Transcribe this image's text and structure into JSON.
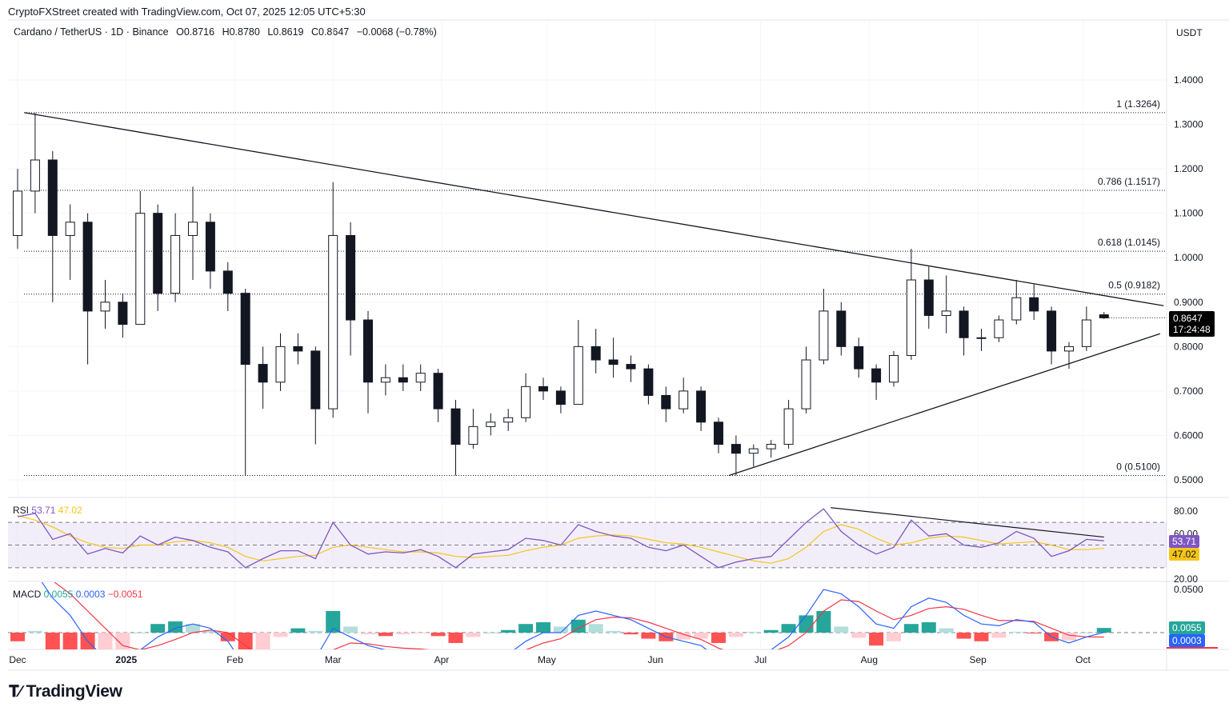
{
  "header": {
    "credit": "CryptoFXStreet created with TradingView.com, Oct 07, 2025 12:05 UTC+5:30",
    "symbol": "Cardano / TetherUS · 1D · Binance",
    "open": "O0.8716",
    "high": "H0.8780",
    "low": "L0.8619",
    "close": "C0.8647",
    "change": "−0.0068 (−0.78%)",
    "currency": "USDT"
  },
  "price_label": {
    "value": "0.8647",
    "countdown": "17:24:48"
  },
  "brand": "TradingView",
  "colors": {
    "up": "#089981",
    "down": "#f23645",
    "rsi": "#7e57c2",
    "rsi_ma": "#f5c518",
    "macd": "#2962ff",
    "signal": "#f23645",
    "hist_up": "#26a69a",
    "hist_down": "#ff5252"
  },
  "chart_data": {
    "type": "candlestick",
    "timeframe": "1D",
    "x_ticks": [
      {
        "label": "Dec",
        "date": "2024-12-01"
      },
      {
        "label": "2025",
        "date": "2025-01-01"
      },
      {
        "label": "Feb",
        "date": "2025-02-01"
      },
      {
        "label": "Mar",
        "date": "2025-03-01"
      },
      {
        "label": "Apr",
        "date": "2025-04-01"
      },
      {
        "label": "May",
        "date": "2025-05-01"
      },
      {
        "label": "Jun",
        "date": "2025-06-01"
      },
      {
        "label": "Jul",
        "date": "2025-07-01"
      },
      {
        "label": "Aug",
        "date": "2025-08-01"
      },
      {
        "label": "Sep",
        "date": "2025-09-01"
      },
      {
        "label": "Oct",
        "date": "2025-10-01"
      }
    ],
    "y_ticks": [
      "0.5000",
      "0.6000",
      "0.7000",
      "0.8000",
      "0.9000",
      "1.0000",
      "1.1000",
      "1.2000",
      "1.3000",
      "1.4000"
    ],
    "ylim": [
      0.5,
      1.4
    ],
    "candles": [
      [
        "2024-12-01",
        1.05,
        1.2,
        1.02,
        1.15
      ],
      [
        "2024-12-06",
        1.15,
        1.3264,
        1.1,
        1.22
      ],
      [
        "2024-12-11",
        1.22,
        1.24,
        0.9,
        1.05
      ],
      [
        "2024-12-16",
        1.05,
        1.12,
        0.95,
        1.08
      ],
      [
        "2024-12-21",
        1.08,
        1.1,
        0.76,
        0.88
      ],
      [
        "2024-12-26",
        0.88,
        0.95,
        0.84,
        0.9
      ],
      [
        "2024-12-31",
        0.9,
        0.92,
        0.82,
        0.85
      ],
      [
        "2025-01-05",
        0.85,
        1.15,
        0.85,
        1.1
      ],
      [
        "2025-01-10",
        1.1,
        1.12,
        0.88,
        0.92
      ],
      [
        "2025-01-15",
        0.92,
        1.1,
        0.9,
        1.05
      ],
      [
        "2025-01-20",
        1.05,
        1.16,
        0.95,
        1.08
      ],
      [
        "2025-01-25",
        1.08,
        1.1,
        0.93,
        0.97
      ],
      [
        "2025-01-30",
        0.97,
        0.99,
        0.88,
        0.92
      ],
      [
        "2025-02-04",
        0.92,
        0.93,
        0.51,
        0.76
      ],
      [
        "2025-02-09",
        0.76,
        0.8,
        0.66,
        0.72
      ],
      [
        "2025-02-14",
        0.72,
        0.83,
        0.7,
        0.8
      ],
      [
        "2025-02-19",
        0.8,
        0.83,
        0.76,
        0.79
      ],
      [
        "2025-02-24",
        0.79,
        0.8,
        0.58,
        0.66
      ],
      [
        "2025-03-01",
        0.66,
        1.17,
        0.64,
        1.05
      ],
      [
        "2025-03-06",
        1.05,
        1.08,
        0.78,
        0.86
      ],
      [
        "2025-03-11",
        0.86,
        0.88,
        0.65,
        0.72
      ],
      [
        "2025-03-16",
        0.72,
        0.76,
        0.69,
        0.73
      ],
      [
        "2025-03-21",
        0.73,
        0.76,
        0.7,
        0.72
      ],
      [
        "2025-03-26",
        0.72,
        0.76,
        0.7,
        0.74
      ],
      [
        "2025-03-31",
        0.74,
        0.75,
        0.63,
        0.66
      ],
      [
        "2025-04-05",
        0.66,
        0.68,
        0.51,
        0.58
      ],
      [
        "2025-04-10",
        0.58,
        0.66,
        0.57,
        0.62
      ],
      [
        "2025-04-15",
        0.62,
        0.65,
        0.6,
        0.63
      ],
      [
        "2025-04-20",
        0.63,
        0.66,
        0.61,
        0.64
      ],
      [
        "2025-04-25",
        0.64,
        0.74,
        0.63,
        0.71
      ],
      [
        "2025-04-30",
        0.71,
        0.73,
        0.68,
        0.7
      ],
      [
        "2025-05-05",
        0.7,
        0.71,
        0.65,
        0.67
      ],
      [
        "2025-05-10",
        0.67,
        0.86,
        0.67,
        0.8
      ],
      [
        "2025-05-15",
        0.8,
        0.84,
        0.74,
        0.77
      ],
      [
        "2025-05-20",
        0.77,
        0.82,
        0.73,
        0.76
      ],
      [
        "2025-05-25",
        0.76,
        0.78,
        0.72,
        0.75
      ],
      [
        "2025-05-30",
        0.75,
        0.76,
        0.67,
        0.69
      ],
      [
        "2025-06-04",
        0.69,
        0.71,
        0.63,
        0.66
      ],
      [
        "2025-06-09",
        0.66,
        0.73,
        0.65,
        0.7
      ],
      [
        "2025-06-14",
        0.7,
        0.71,
        0.61,
        0.63
      ],
      [
        "2025-06-19",
        0.63,
        0.64,
        0.56,
        0.58
      ],
      [
        "2025-06-24",
        0.58,
        0.6,
        0.51,
        0.56
      ],
      [
        "2025-06-29",
        0.56,
        0.58,
        0.53,
        0.57
      ],
      [
        "2025-07-04",
        0.57,
        0.59,
        0.55,
        0.58
      ],
      [
        "2025-07-09",
        0.58,
        0.68,
        0.57,
        0.66
      ],
      [
        "2025-07-14",
        0.66,
        0.8,
        0.65,
        0.77
      ],
      [
        "2025-07-19",
        0.77,
        0.93,
        0.76,
        0.88
      ],
      [
        "2025-07-24",
        0.88,
        0.9,
        0.78,
        0.8
      ],
      [
        "2025-07-29",
        0.8,
        0.82,
        0.73,
        0.75
      ],
      [
        "2025-08-03",
        0.75,
        0.76,
        0.68,
        0.72
      ],
      [
        "2025-08-08",
        0.72,
        0.79,
        0.71,
        0.78
      ],
      [
        "2025-08-13",
        0.78,
        1.02,
        0.77,
        0.95
      ],
      [
        "2025-08-18",
        0.95,
        0.98,
        0.84,
        0.87
      ],
      [
        "2025-08-23",
        0.87,
        0.96,
        0.83,
        0.88
      ],
      [
        "2025-08-28",
        0.88,
        0.89,
        0.78,
        0.82
      ],
      [
        "2025-09-02",
        0.82,
        0.84,
        0.79,
        0.82
      ],
      [
        "2025-09-07",
        0.82,
        0.87,
        0.81,
        0.86
      ],
      [
        "2025-09-12",
        0.86,
        0.95,
        0.85,
        0.91
      ],
      [
        "2025-09-17",
        0.91,
        0.94,
        0.86,
        0.88
      ],
      [
        "2025-09-22",
        0.88,
        0.89,
        0.76,
        0.79
      ],
      [
        "2025-09-27",
        0.79,
        0.81,
        0.75,
        0.8
      ],
      [
        "2025-10-02",
        0.8,
        0.89,
        0.79,
        0.86
      ],
      [
        "2025-10-07",
        0.8716,
        0.878,
        0.8619,
        0.8647
      ]
    ],
    "fib_levels": [
      {
        "label": "1 (1.3264)",
        "price": 1.3264
      },
      {
        "label": "0.786 (1.1517)",
        "price": 1.1517
      },
      {
        "label": "0.618 (1.0145)",
        "price": 1.0145
      },
      {
        "label": "0.5 (0.9182)",
        "price": 0.9182
      },
      {
        "label": "0 (0.5100)",
        "price": 0.51
      }
    ],
    "trendlines": [
      {
        "from": [
          "2024-12-03",
          1.3264
        ],
        "to": [
          "2025-10-24",
          0.892
        ]
      },
      {
        "from": [
          "2025-06-22",
          0.51
        ],
        "to": [
          "2025-10-23",
          0.829
        ]
      }
    ],
    "rsi": {
      "label": "RSI",
      "value": "53.71",
      "ma_value": "47.02",
      "y_ticks": [
        "80.00",
        "60.00",
        "20.00"
      ],
      "ylim": [
        20,
        80
      ],
      "bands": [
        70,
        50,
        30
      ],
      "values": [
        75,
        78,
        55,
        60,
        42,
        47,
        43,
        58,
        50,
        57,
        54,
        48,
        44,
        30,
        38,
        45,
        45,
        38,
        70,
        50,
        42,
        44,
        43,
        46,
        40,
        30,
        42,
        44,
        46,
        56,
        54,
        50,
        68,
        62,
        58,
        56,
        48,
        45,
        50,
        40,
        30,
        35,
        38,
        40,
        55,
        70,
        82,
        62,
        50,
        42,
        48,
        72,
        58,
        60,
        50,
        48,
        52,
        62,
        56,
        40,
        45,
        55,
        53.71
      ],
      "ma": [
        76,
        72,
        66,
        58,
        52,
        48,
        47,
        50,
        50,
        53,
        54,
        52,
        48,
        40,
        36,
        38,
        40,
        41,
        48,
        50,
        48,
        46,
        44,
        44,
        43,
        40,
        39,
        40,
        41,
        45,
        48,
        50,
        56,
        58,
        59,
        58,
        55,
        52,
        51,
        48,
        44,
        40,
        36,
        34,
        38,
        48,
        62,
        68,
        64,
        56,
        50,
        52,
        56,
        58,
        57,
        54,
        51,
        52,
        53,
        50,
        46,
        46,
        47.02
      ],
      "trendline": {
        "from": [
          "2025-07-21",
          83
        ],
        "to": [
          "2025-10-07",
          57
        ]
      }
    },
    "macd": {
      "label": "MACD",
      "hist_value": "0.0055",
      "macd_value": "0.0003",
      "signal_value": "−0.0051",
      "y_ticks": [
        "0.0500"
      ],
      "ylim": [
        -0.02,
        0.05
      ],
      "macd": [
        0.06,
        0.07,
        0.04,
        0.02,
        -0.01,
        -0.03,
        -0.04,
        -0.02,
        -0.005,
        0.005,
        0.01,
        0.005,
        -0.01,
        -0.04,
        -0.05,
        -0.04,
        -0.03,
        -0.03,
        0.005,
        -0.005,
        -0.015,
        -0.02,
        -0.02,
        -0.02,
        -0.025,
        -0.04,
        -0.035,
        -0.03,
        -0.025,
        -0.01,
        0.0,
        0.0,
        0.02,
        0.025,
        0.02,
        0.015,
        0.005,
        -0.005,
        -0.01,
        -0.015,
        -0.03,
        -0.03,
        -0.025,
        -0.02,
        -0.005,
        0.02,
        0.05,
        0.045,
        0.03,
        0.01,
        0.005,
        0.03,
        0.04,
        0.035,
        0.02,
        0.01,
        0.008,
        0.015,
        0.012,
        -0.005,
        -0.012,
        -0.005,
        0.0003
      ],
      "signal": [
        0.07,
        0.068,
        0.06,
        0.045,
        0.025,
        0.005,
        -0.015,
        -0.02,
        -0.015,
        -0.008,
        0.0,
        0.003,
        0.0,
        -0.015,
        -0.03,
        -0.035,
        -0.035,
        -0.032,
        -0.02,
        -0.012,
        -0.013,
        -0.016,
        -0.018,
        -0.019,
        -0.021,
        -0.028,
        -0.03,
        -0.03,
        -0.028,
        -0.02,
        -0.012,
        -0.007,
        0.005,
        0.015,
        0.018,
        0.017,
        0.012,
        0.005,
        -0.002,
        -0.008,
        -0.018,
        -0.025,
        -0.026,
        -0.023,
        -0.015,
        0.0,
        0.025,
        0.038,
        0.036,
        0.025,
        0.015,
        0.02,
        0.028,
        0.03,
        0.027,
        0.02,
        0.014,
        0.014,
        0.013,
        0.005,
        -0.003,
        -0.005,
        -0.0051
      ]
    }
  }
}
